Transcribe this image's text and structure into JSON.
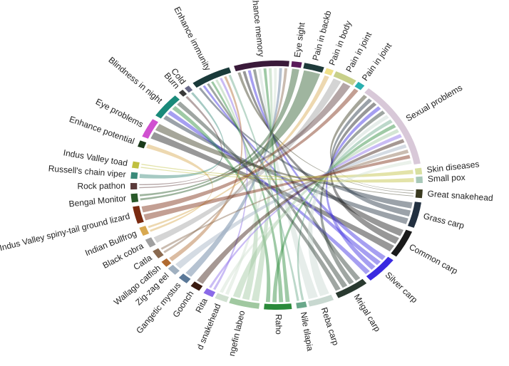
{
  "nodes": [
    {
      "label": "Enhance memory",
      "color": "#3a1a3a"
    },
    {
      "label": "Eye sight",
      "color": "#5a1a5a"
    },
    {
      "label": "Pain in backb",
      "color": "#1e3a3a"
    },
    {
      "label": "Pain in body",
      "color": "#f0e08a"
    },
    {
      "label": "Pain in joint",
      "color": "#c8d08a"
    },
    {
      "label": "Pain in joint",
      "color": "#2ab0b0"
    },
    {
      "label": "Sexual problems",
      "color": "#d8c8d8"
    },
    {
      "label": "Skin diseases",
      "color": "#d8e0a0"
    },
    {
      "label": "Small pox",
      "color": "#a8c8b8"
    },
    {
      "label": "Great snakehead",
      "color": "#3a3a20"
    },
    {
      "label": "Grass carp",
      "color": "#223040"
    },
    {
      "label": "Common carp",
      "color": "#1a1a1a"
    },
    {
      "label": "Silver carp",
      "color": "#3a2ae0"
    },
    {
      "label": "Mrigal carp",
      "color": "#2a3a30"
    },
    {
      "label": "Reba carp",
      "color": "#c8d8d0"
    },
    {
      "label": "Nile tilapia",
      "color": "#6aa88a"
    },
    {
      "label": "Raho",
      "color": "#2a8a3a"
    },
    {
      "label": "ngefin labeo",
      "color": "#a0c8a0"
    },
    {
      "label": "d snakehead",
      "color": "#d0e0d0"
    },
    {
      "label": "Rita",
      "color": "#8a6ae8"
    },
    {
      "label": "Goonch",
      "color": "#3a1a10"
    },
    {
      "label": "Gangetic mystus",
      "color": "#5a7898"
    },
    {
      "label": "Zig-zag eel",
      "color": "#a0b0c0"
    },
    {
      "label": "Wallago catfish",
      "color": "#b06a30"
    },
    {
      "label": "Catla",
      "color": "#8a6a50"
    },
    {
      "label": "Black cobra",
      "color": "#a0a0a0"
    },
    {
      "label": "Indian Bullfrog",
      "color": "#d8a850"
    },
    {
      "label": "Indus Valley spiny-tail ground lizard",
      "color": "#7a2a10"
    },
    {
      "label": "Bengal Monitor",
      "color": "#2a5a2a"
    },
    {
      "label": "Rock pathon",
      "color": "#5a3a3a"
    },
    {
      "label": "Russell's chain viper",
      "color": "#3a8a7a"
    },
    {
      "label": "Indus Valley toad",
      "color": "#c0c040"
    },
    {
      "label": "Enhance potential",
      "color": "#1a3a1a"
    },
    {
      "label": "Eye problems",
      "color": "#d050d0"
    },
    {
      "label": "Blindness in night",
      "color": "#1a8a7a"
    },
    {
      "label": "Burn",
      "color": "#3a3a3a"
    },
    {
      "label": "Cold",
      "color": "#6a6a8a"
    },
    {
      "label": "Enhance immunity",
      "color": "#1a3a3a"
    }
  ],
  "links": [
    [
      9,
      6
    ],
    [
      9,
      0
    ],
    [
      10,
      37
    ],
    [
      10,
      6
    ],
    [
      10,
      34
    ],
    [
      11,
      0
    ],
    [
      11,
      6
    ],
    [
      11,
      33
    ],
    [
      12,
      0
    ],
    [
      12,
      37
    ],
    [
      12,
      6
    ],
    [
      12,
      34
    ],
    [
      13,
      0
    ],
    [
      13,
      6
    ],
    [
      13,
      37
    ],
    [
      14,
      6
    ],
    [
      14,
      0
    ],
    [
      15,
      6
    ],
    [
      16,
      0
    ],
    [
      16,
      37
    ],
    [
      16,
      6
    ],
    [
      16,
      34
    ],
    [
      17,
      0
    ],
    [
      17,
      37
    ],
    [
      17,
      6
    ],
    [
      18,
      0
    ],
    [
      19,
      37
    ],
    [
      19,
      6
    ],
    [
      20,
      6
    ],
    [
      21,
      0
    ],
    [
      22,
      6
    ],
    [
      23,
      37
    ],
    [
      24,
      0
    ],
    [
      24,
      6
    ],
    [
      25,
      4
    ],
    [
      26,
      32
    ],
    [
      26,
      3
    ],
    [
      27,
      6
    ],
    [
      27,
      5
    ],
    [
      28,
      2
    ],
    [
      28,
      1
    ],
    [
      29,
      4
    ],
    [
      29,
      35
    ],
    [
      30,
      36
    ],
    [
      31,
      8
    ],
    [
      31,
      7
    ],
    [
      9,
      33
    ],
    [
      13,
      34
    ],
    [
      15,
      37
    ],
    [
      18,
      6
    ]
  ]
}
